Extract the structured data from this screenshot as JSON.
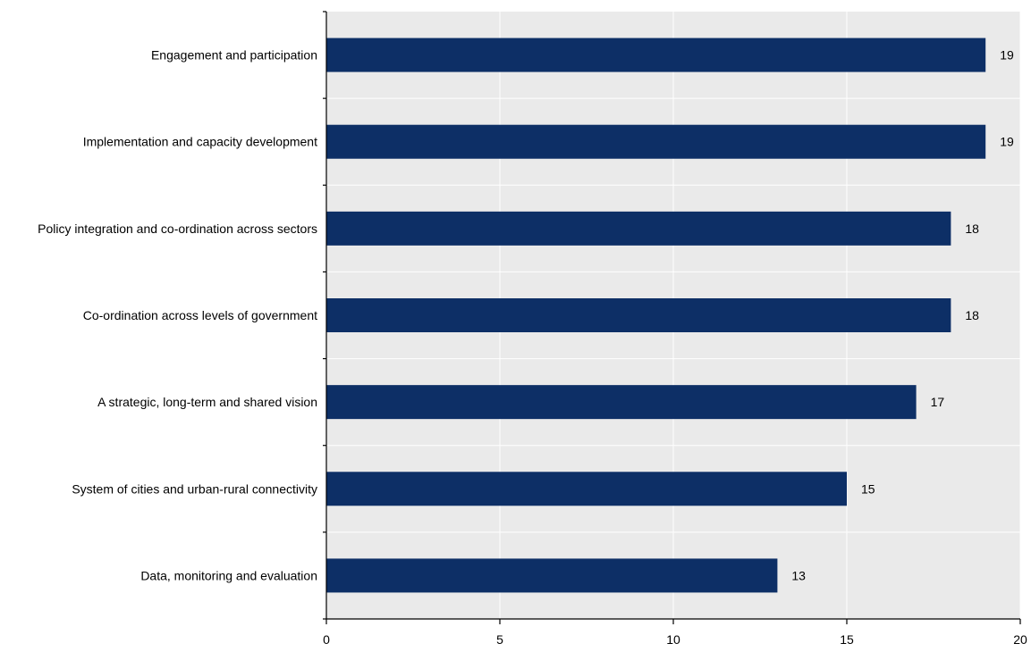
{
  "chart_data": {
    "type": "bar",
    "orientation": "horizontal",
    "categories": [
      "Engagement and participation",
      "Implementation and capacity development",
      "Policy integration and co-ordination across sectors",
      "Co-ordination across levels of government",
      "A strategic, long-term and shared vision",
      "System of cities and urban-rural connectivity",
      "Data, monitoring and evaluation"
    ],
    "values": [
      19,
      19,
      18,
      18,
      17,
      15,
      13
    ],
    "data_labels": [
      "19",
      "19",
      "18",
      "18",
      "17",
      "15",
      "13"
    ],
    "title": "",
    "xlabel": "",
    "ylabel": "",
    "xlim": [
      0,
      20
    ],
    "x_ticks": [
      0,
      5,
      10,
      15,
      20
    ],
    "x_tick_labels": [
      "0",
      "5",
      "10",
      "15",
      "20"
    ],
    "grid": true,
    "legend": "none",
    "colors": {
      "bar": "#0d2f66",
      "plot_background": "#eaeaea",
      "grid": "#ffffff",
      "axis": "#000000"
    }
  }
}
